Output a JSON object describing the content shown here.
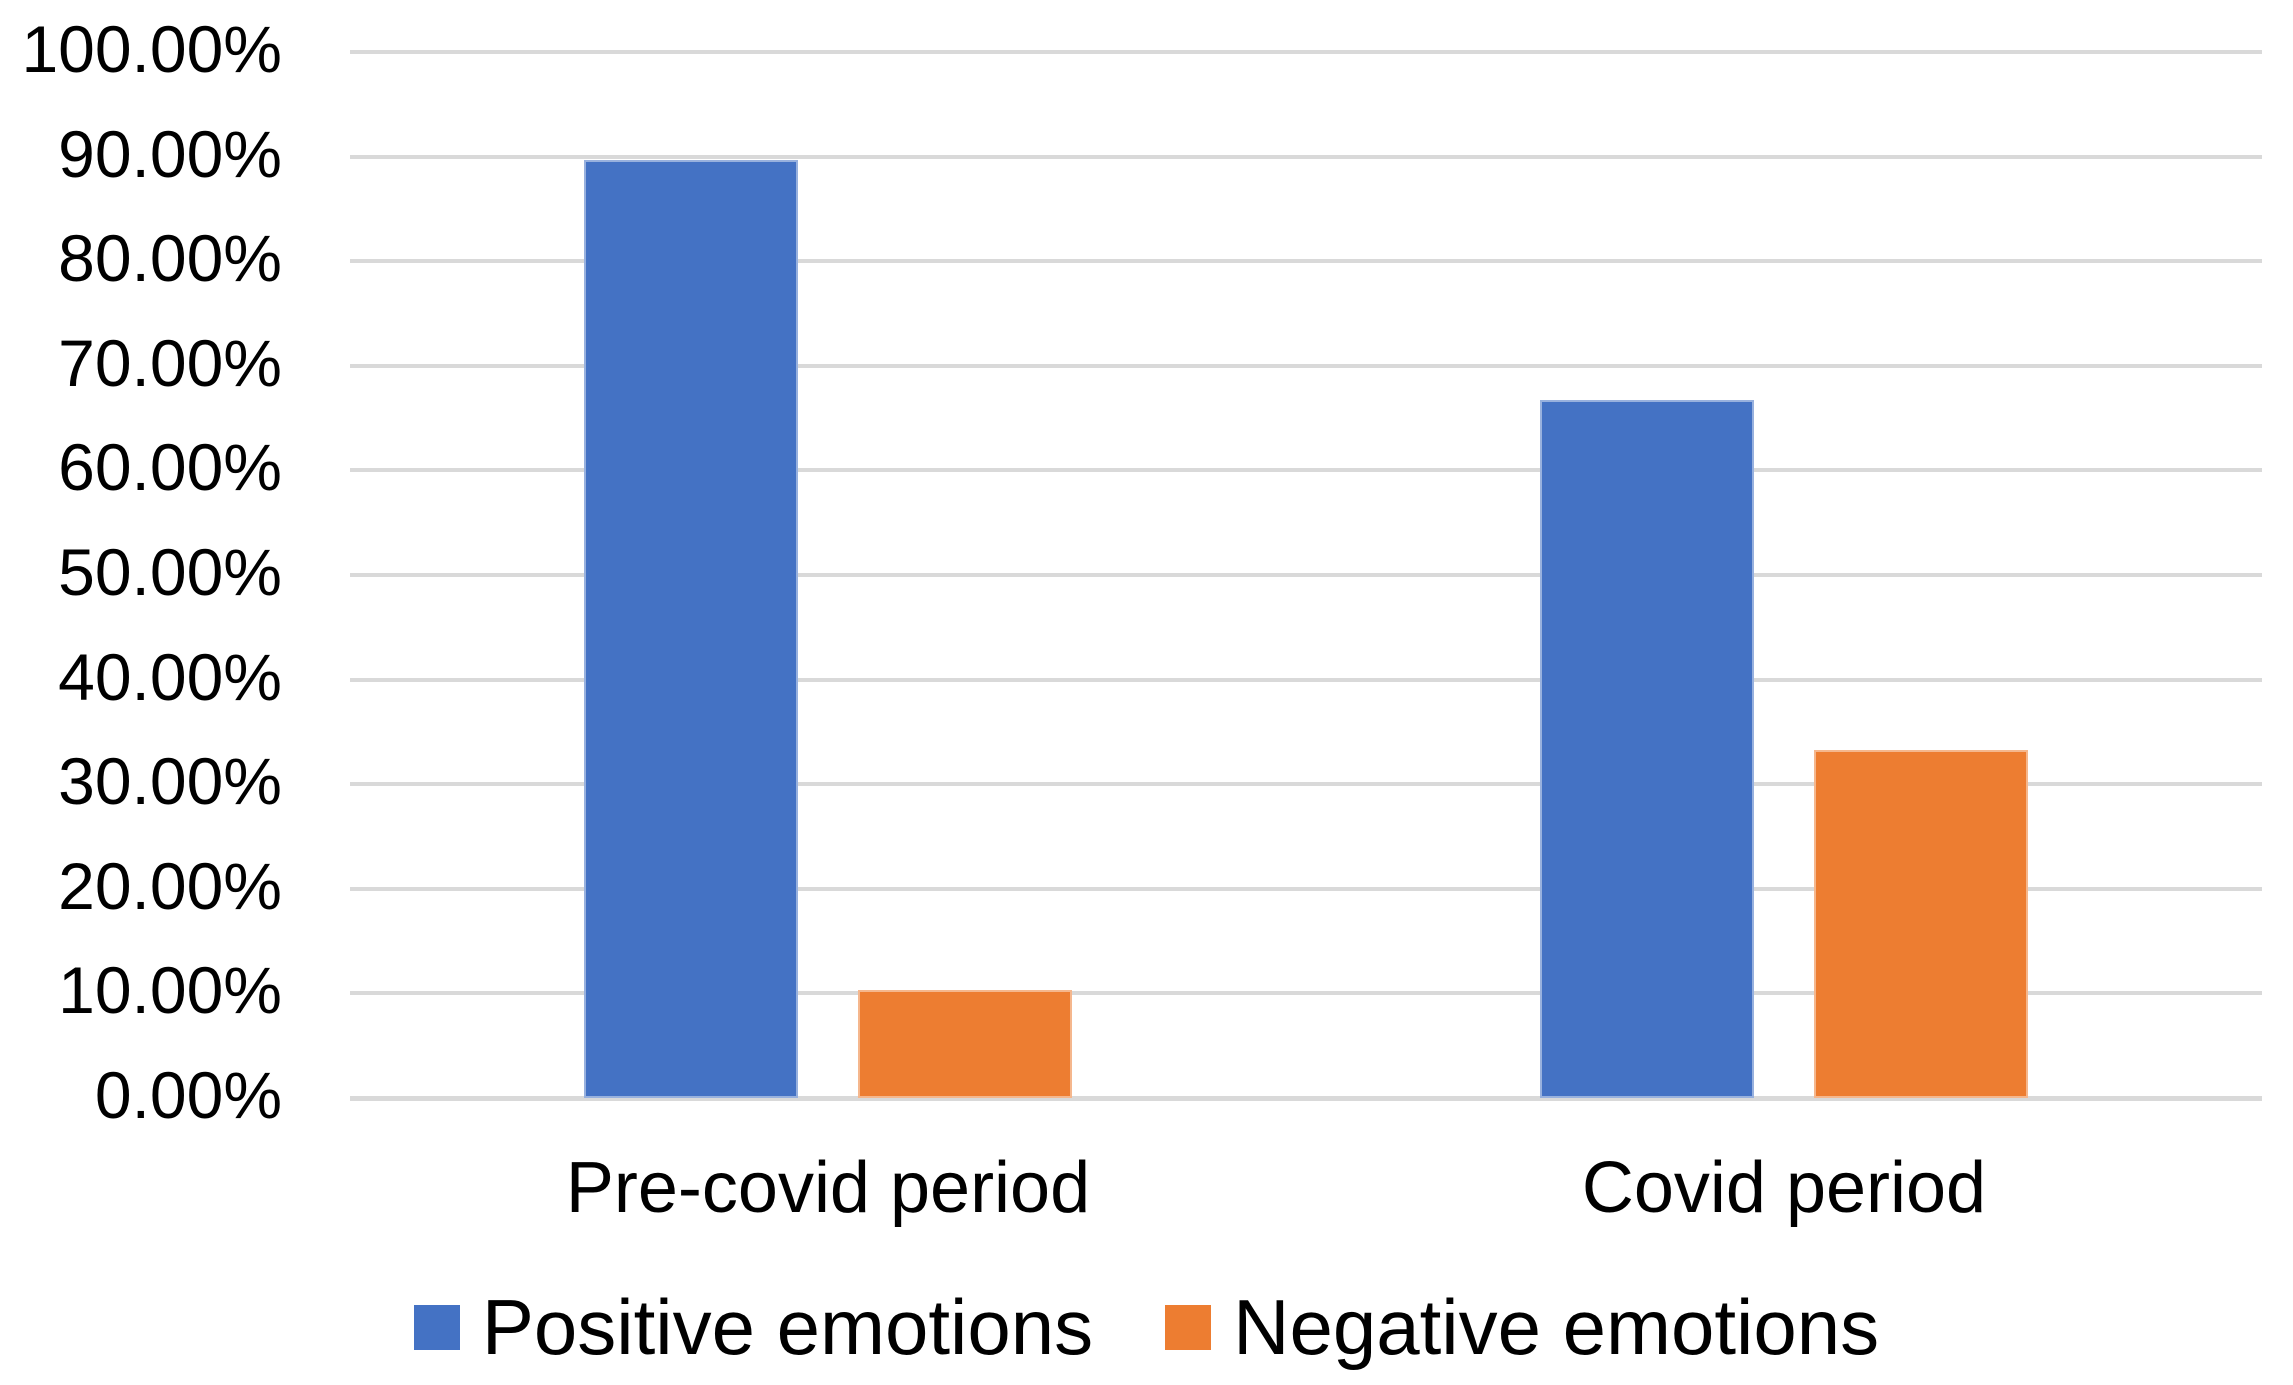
{
  "chart_data": {
    "type": "bar",
    "title": "",
    "xlabel": "",
    "ylabel": "",
    "categories": [
      "Pre-covid period",
      "Covid period"
    ],
    "series": [
      {
        "name": "Positive emotions",
        "color": "#4472C4",
        "values": [
          89.7,
          66.7
        ]
      },
      {
        "name": "Negative emotions",
        "color": "#ED7D31",
        "values": [
          10.3,
          33.3
        ]
      }
    ],
    "y_axis": {
      "min": 0,
      "max": 100,
      "step": 10,
      "tick_labels": [
        "0.00%",
        "10.00%",
        "20.00%",
        "30.00%",
        "40.00%",
        "50.00%",
        "60.00%",
        "70.00%",
        "80.00%",
        "90.00%",
        "100.00%"
      ],
      "unit": "%"
    },
    "grid": true,
    "gridline_color": "#D9D9D9",
    "text_color": "#000000",
    "background_color": "#FFFFFF",
    "legend_position": "bottom"
  }
}
